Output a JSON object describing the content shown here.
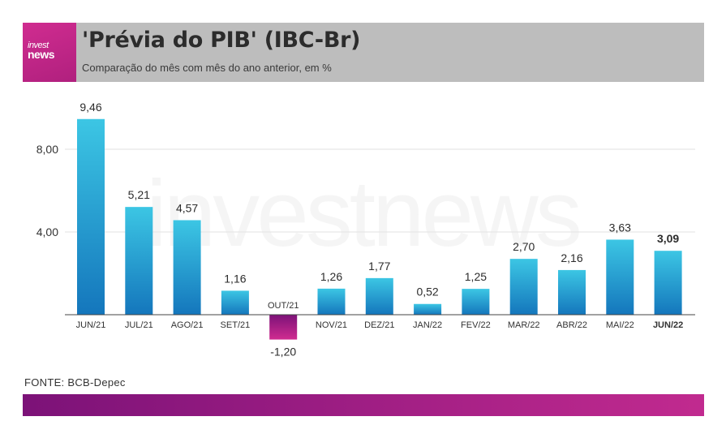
{
  "header": {
    "logo_line1": "invest",
    "logo_line2": "news",
    "title": "'Prévia do PIB' (IBC-Br)",
    "subtitle": "Comparação do mês com mês do ano anterior, em %"
  },
  "watermark": "investnews",
  "source": "FONTE: BCB-Depec",
  "colors": {
    "bar_positive_top": "#3cc6e4",
    "bar_positive_bottom": "#1476bc",
    "bar_negative_top": "#7c1278",
    "bar_negative_bottom": "#d02c90",
    "header_bg": "#bdbdbd",
    "brand_magenta": "#c12a8f"
  },
  "chart_data": {
    "type": "bar",
    "title": "'Prévia do PIB' (IBC-Br)",
    "subtitle": "Comparação do mês com mês do ano anterior, em %",
    "categories": [
      "JUN/21",
      "JUL/21",
      "AGO/21",
      "SET/21",
      "OUT/21",
      "NOV/21",
      "DEZ/21",
      "JAN/22",
      "FEV/22",
      "MAR/22",
      "ABR/22",
      "MAI/22",
      "JUN/22"
    ],
    "values": [
      9.46,
      5.21,
      4.57,
      1.16,
      -1.2,
      1.26,
      1.77,
      0.52,
      1.25,
      2.7,
      2.16,
      3.63,
      3.09
    ],
    "value_labels": [
      "9,46",
      "5,21",
      "4,57",
      "1,16",
      "-1,20",
      "1,26",
      "1,77",
      "0,52",
      "1,25",
      "2,70",
      "2,16",
      "3,63",
      "3,09"
    ],
    "highlight_index": 12,
    "yticks": [
      4,
      8
    ],
    "ytick_labels": [
      "4,00",
      "8,00"
    ],
    "ylim": [
      -1.2,
      9.46
    ],
    "grid": true,
    "xlabel": "",
    "ylabel": ""
  }
}
